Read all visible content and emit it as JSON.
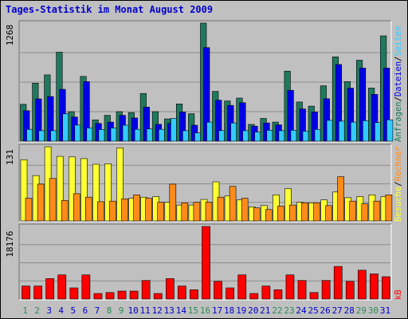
{
  "window": {
    "title": "Tages-Statistik im Monat August 2009"
  },
  "chart_data": {
    "type": "bar",
    "title": "Tages-Statistik im Monat August 2009",
    "categories": [
      "1",
      "2",
      "3",
      "4",
      "5",
      "6",
      "7",
      "8",
      "9",
      "10",
      "11",
      "12",
      "13",
      "14",
      "15",
      "16",
      "17",
      "18",
      "19",
      "20",
      "21",
      "22",
      "23",
      "24",
      "25",
      "26",
      "27",
      "28",
      "29",
      "30",
      "31"
    ],
    "weekend_days": [
      "1",
      "2",
      "8",
      "9",
      "15",
      "16",
      "22",
      "23",
      "29",
      "30"
    ],
    "colors": {
      "anfragen": "#1e7a5e",
      "dateien": "#0000e6",
      "seiten": "#33ccff",
      "besuche": "#ffff33",
      "rechner": "#ff8c1a",
      "kb": "#ff0000",
      "weekday_label": "#0000cc",
      "weekend_label": "#2e8b57"
    },
    "panels": [
      {
        "id": "hits",
        "max_label": "1268",
        "ymax": 1268,
        "legend": [
          {
            "text": "Anfragen",
            "color": "#1e7a5e"
          },
          {
            "text": "Dateien",
            "color": "#0000e6"
          },
          {
            "text": "Seiten",
            "color": "#33ccff"
          }
        ],
        "series": [
          {
            "name": "Anfragen",
            "color": "#1e7a5e",
            "values": [
              396,
              623,
              712,
              956,
              317,
              696,
              229,
              278,
              317,
              307,
              512,
              317,
              239,
              400,
              295,
              1268,
              535,
              432,
              463,
              180,
              244,
              205,
              752,
              421,
              376,
              595,
              906,
              640,
              870,
              571,
              1131
            ]
          },
          {
            "name": "Dateien",
            "color": "#0000e6",
            "values": [
              327,
              454,
              479,
              557,
              259,
              640,
              190,
              205,
              278,
              249,
              366,
              181,
              190,
              313,
              171,
              1005,
              440,
              384,
              413,
              161,
              195,
              176,
              547,
              346,
              313,
              456,
              823,
              569,
              786,
              503,
              785
            ]
          },
          {
            "name": "Seiten",
            "color": "#33ccff",
            "values": [
              127,
              112,
              112,
              293,
              173,
              142,
              124,
              142,
              171,
              127,
              132,
              127,
              244,
              112,
              88,
              205,
              113,
              195,
              112,
              98,
              117,
              112,
              117,
              107,
              126,
              224,
              215,
              205,
              220,
              200,
              230
            ]
          }
        ]
      },
      {
        "id": "visits",
        "max_label": "131",
        "ymax": 131,
        "legend": [
          {
            "text": "Besuche",
            "color": "#ffff33"
          },
          {
            "text": "Rechner",
            "color": "#ff8c1a"
          }
        ],
        "series": [
          {
            "name": "Besuche",
            "color": "#ffff33",
            "values": [
              108,
              80,
              131,
              114,
              113,
              110,
              100,
              101,
              129,
              40,
              42,
              43,
              33,
              28,
              28,
              38,
              69,
              44,
              37,
              25,
              27,
              46,
              57,
              33,
              32,
              37,
              51,
              41,
              43,
              46,
              43
            ]
          },
          {
            "name": "Rechner",
            "color": "#ff8c1a",
            "values": [
              40,
              65,
              75,
              36,
              48,
              42,
              34,
              35,
              39,
              46,
              40,
              33,
              65,
              32,
              33,
              33,
              42,
              61,
              40,
              23,
              20,
              26,
              28,
              32,
              32,
              27,
              78,
              35,
              30,
              35,
              46
            ]
          }
        ]
      },
      {
        "id": "kb",
        "max_label": "18176",
        "ymax": 18176,
        "legend": [
          {
            "text": "kB",
            "color": "#ff0000"
          }
        ],
        "series": [
          {
            "name": "kB",
            "color": "#ff0000",
            "values": [
              3260,
              3260,
              5130,
              6060,
              2800,
              6060,
              1400,
              1630,
              2000,
              2000,
              4660,
              1400,
              5130,
              3260,
              2330,
              18176,
              4430,
              2800,
              6060,
              1400,
              3260,
              2330,
              6060,
              4660,
              1630,
              4660,
              8160,
              4430,
              7230,
              6290,
              5590
            ]
          }
        ]
      }
    ]
  }
}
